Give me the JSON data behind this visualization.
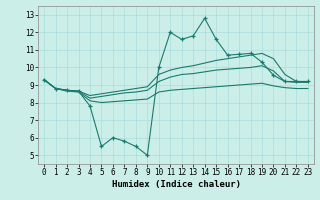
{
  "xlabel": "Humidex (Indice chaleur)",
  "x": [
    0,
    1,
    2,
    3,
    4,
    5,
    6,
    7,
    8,
    9,
    10,
    11,
    12,
    13,
    14,
    15,
    16,
    17,
    18,
    19,
    20,
    21,
    22,
    23
  ],
  "line_main": [
    9.3,
    8.8,
    8.7,
    8.65,
    7.8,
    5.5,
    6.0,
    5.8,
    5.5,
    5.0,
    10.0,
    12.0,
    11.6,
    11.8,
    12.8,
    11.6,
    10.7,
    10.75,
    10.8,
    10.3,
    9.55,
    9.2,
    9.2,
    9.2
  ],
  "line_upper": [
    9.3,
    8.8,
    8.7,
    8.65,
    8.4,
    8.5,
    8.6,
    8.7,
    8.8,
    8.9,
    9.6,
    9.85,
    10.0,
    10.1,
    10.25,
    10.4,
    10.5,
    10.6,
    10.7,
    10.8,
    10.5,
    9.6,
    9.2,
    9.2
  ],
  "line_mid": [
    9.3,
    8.8,
    8.7,
    8.65,
    8.25,
    8.35,
    8.45,
    8.55,
    8.6,
    8.7,
    9.2,
    9.45,
    9.6,
    9.65,
    9.75,
    9.85,
    9.9,
    9.95,
    10.0,
    10.1,
    9.8,
    9.2,
    9.15,
    9.15
  ],
  "line_lower": [
    9.3,
    8.8,
    8.65,
    8.6,
    8.1,
    8.0,
    8.05,
    8.1,
    8.15,
    8.2,
    8.6,
    8.7,
    8.75,
    8.8,
    8.85,
    8.9,
    8.95,
    9.0,
    9.05,
    9.1,
    8.95,
    8.85,
    8.8,
    8.8
  ],
  "color_main": "#1a7a6e",
  "color_band": "#1a7a6e",
  "bg_color": "#cceee8",
  "grid_color": "#aadddd",
  "ylim": [
    4.5,
    13.5
  ],
  "yticks": [
    5,
    6,
    7,
    8,
    9,
    10,
    11,
    12,
    13
  ],
  "xticks": [
    0,
    1,
    2,
    3,
    4,
    5,
    6,
    7,
    8,
    9,
    10,
    11,
    12,
    13,
    14,
    15,
    16,
    17,
    18,
    19,
    20,
    21,
    22,
    23
  ],
  "tick_fontsize": 5.5,
  "xlabel_fontsize": 6.5,
  "xlabel_bold": true
}
